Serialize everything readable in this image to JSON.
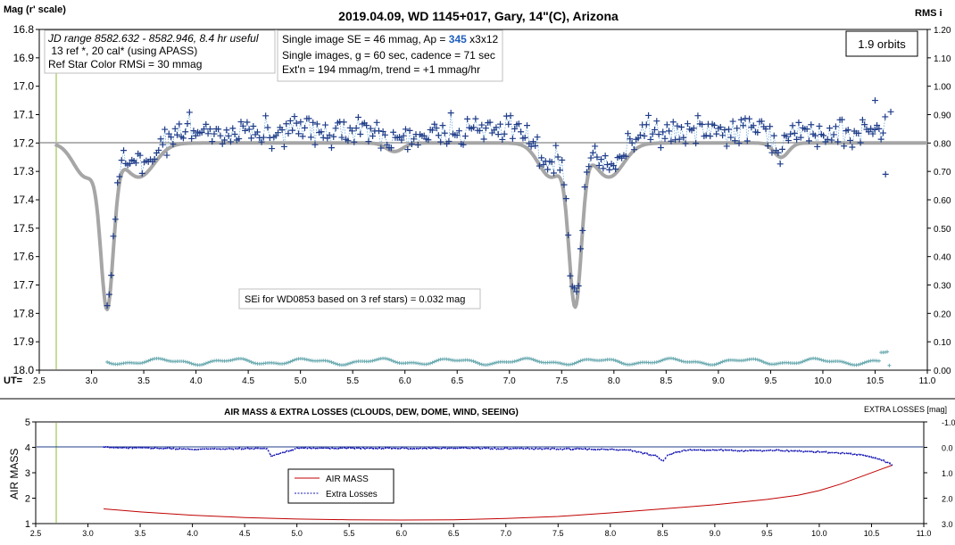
{
  "chart_data": [
    {
      "type": "scatter",
      "title": "2019.04.09, WD 1145+017, Gary, 14\"(C), Arizona",
      "ylabel_left": "Mag (r' scale)",
      "ylabel_right": "RMS i",
      "xlabel": "UT=",
      "xlim": [
        2.5,
        11.0
      ],
      "ylim_left": [
        16.8,
        18.0
      ],
      "ylim_right": [
        1.2,
        0.0
      ],
      "x_ticks": [
        "2.5",
        "3.0",
        "3.5",
        "4.0",
        "4.5",
        "5.0",
        "5.5",
        "6.0",
        "6.5",
        "7.0",
        "7.5",
        "8.0",
        "8.5",
        "9.0",
        "9.5",
        "10.0",
        "10.5",
        "11.0"
      ],
      "y_ticks_left": [
        "16.8",
        "16.9",
        "17.0",
        "17.1",
        "17.2",
        "17.3",
        "17.4",
        "17.5",
        "17.6",
        "17.7",
        "17.8",
        "17.9",
        "18.0"
      ],
      "y_ticks_right": [
        "1.20",
        "1.10",
        "1.00",
        "0.90",
        "0.80",
        "0.70",
        "0.60",
        "0.50",
        "0.40",
        "0.30",
        "0.20",
        "0.10",
        "0.00"
      ],
      "info_box_1": [
        "JD range 8582.632 - 8582.946, 8.4 hr useful",
        " 13 ref *, 20 cal* (using APASS)",
        "Ref Star Color RMSi = 30 mmag"
      ],
      "info_box_2_line1_pre": "Single image SE = 46 mmag, Ap = ",
      "info_box_2_line1_ap": "345",
      "info_box_2_line1_post": " x3x12",
      "info_box_2_lines": [
        "Single images, g = 60 sec, cadence = 71 sec",
        "Ext'n = 194 mmag/m, trend = +1 mmag/hr"
      ],
      "orbits_label": "1.9 orbits",
      "sei_note": "SEi for WD0853 based on 3 ref stars) = 0.032 mag",
      "reference_level": 17.2,
      "green_line_x": 2.65,
      "model_dips": [
        {
          "center": 3.15,
          "depth": 0.54,
          "width": 0.06
        },
        {
          "center": 7.63,
          "depth": 0.55,
          "width": 0.06
        }
      ],
      "model_shoulder_pre": [
        {
          "center": 2.95,
          "depth": 0.12,
          "width": 0.12
        },
        {
          "center": 7.4,
          "depth": 0.12,
          "width": 0.12
        }
      ],
      "model_shoulder_post": [
        {
          "center": 3.45,
          "depth": 0.12,
          "width": 0.15
        },
        {
          "center": 7.95,
          "depth": 0.12,
          "width": 0.14
        }
      ],
      "model_small_dips": [
        {
          "center": 5.9,
          "depth": 0.03,
          "width": 0.08
        },
        {
          "center": 9.6,
          "depth": 0.05,
          "width": 0.07
        }
      ],
      "data_x_range": [
        3.15,
        10.6
      ],
      "data_cadence_hr": 0.0197,
      "data_scatter_mag": 0.05,
      "extra_points": [
        {
          "x": 10.5,
          "y": 17.05
        },
        {
          "x": 10.65,
          "y": 17.09
        },
        {
          "x": 10.6,
          "y": 17.31
        }
      ],
      "rms_level_right": 0.03,
      "colors": {
        "data": "#1f3c88",
        "model": "#a6a6a6",
        "rms": "#6aaab0",
        "connector": "#5b9bd5",
        "green_line": "#c5dd9a",
        "orbits_box_border": "#000000",
        "ap_value": "#1f5fbf"
      }
    },
    {
      "type": "line",
      "title": "AIR MASS & EXTRA LOSSES (CLOUDS, DEW, DOME, WIND, SEEING)",
      "ylabel_left": "AIR MASS",
      "ylabel_right": "EXTRA LOSSES [mag]",
      "xlim": [
        2.5,
        11.0
      ],
      "ylim_left": [
        1,
        5
      ],
      "ylim_right": [
        3.0,
        -1.0
      ],
      "x_ticks": [
        "2.5",
        "3.0",
        "3.5",
        "4.0",
        "4.5",
        "5.0",
        "5.5",
        "6.0",
        "6.5",
        "7.0",
        "7.5",
        "8.0",
        "8.5",
        "9.0",
        "9.5",
        "10.0",
        "10.5",
        "11.0"
      ],
      "y_ticks_left": [
        "5",
        "4",
        "3",
        "2",
        "1"
      ],
      "y_ticks_right": [
        "-1.0",
        "0.0",
        "1.0",
        "2.0",
        "3.0"
      ],
      "series": [
        {
          "name": "AIR MASS",
          "color": "#c00000",
          "style": "solid",
          "x": [
            3.15,
            3.5,
            4.0,
            4.5,
            5.0,
            5.5,
            6.0,
            6.5,
            7.0,
            7.5,
            8.0,
            8.5,
            9.0,
            9.5,
            9.8,
            10.0,
            10.2,
            10.4,
            10.6,
            10.7
          ],
          "y": [
            1.58,
            1.46,
            1.33,
            1.24,
            1.18,
            1.15,
            1.14,
            1.15,
            1.2,
            1.28,
            1.42,
            1.58,
            1.74,
            1.95,
            2.12,
            2.3,
            2.55,
            2.85,
            3.15,
            3.3
          ]
        },
        {
          "name": "Extra Losses",
          "color": "#1a1ab5",
          "style": "dashed",
          "x": [
            3.15,
            3.5,
            3.8,
            4.0,
            4.3,
            4.5,
            4.72,
            4.75,
            5.0,
            5.5,
            6.0,
            6.5,
            7.0,
            7.5,
            8.0,
            8.2,
            8.45,
            8.5,
            8.55,
            8.7,
            9.0,
            9.3,
            9.6,
            9.8,
            10.0,
            10.2,
            10.4,
            10.6,
            10.7
          ],
          "y": [
            0.0,
            0.02,
            0.05,
            0.08,
            0.06,
            0.05,
            0.05,
            0.35,
            0.04,
            0.03,
            0.04,
            0.03,
            0.05,
            0.06,
            0.08,
            0.12,
            0.35,
            0.55,
            0.3,
            0.12,
            0.1,
            0.14,
            0.12,
            0.16,
            0.18,
            0.22,
            0.3,
            0.5,
            0.7
          ]
        }
      ],
      "legend": [
        "AIR MASS",
        "Extra Losses"
      ],
      "green_line_x": 2.65,
      "reference_line_right": 0.0
    }
  ]
}
